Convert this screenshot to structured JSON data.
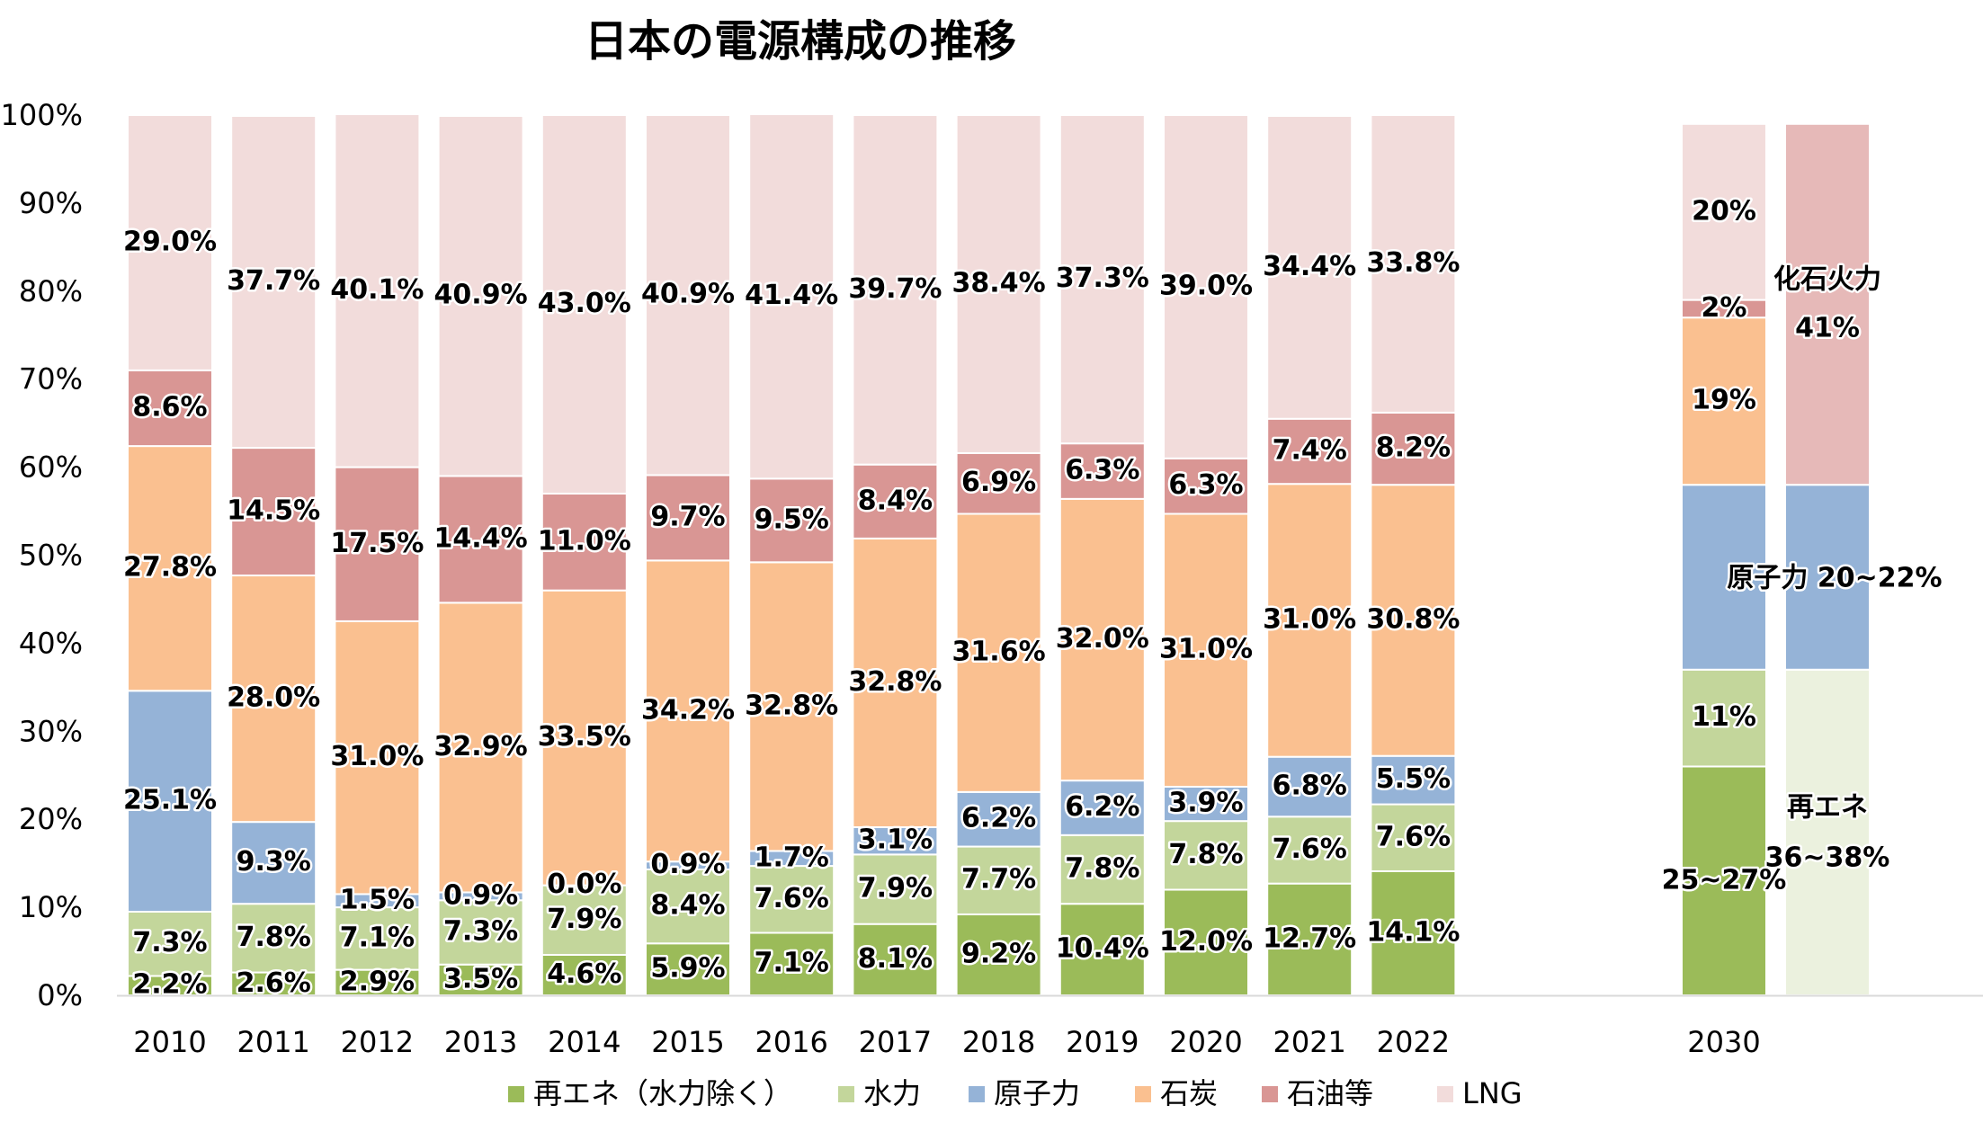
{
  "chart_data": {
    "type": "bar",
    "stacked": true,
    "title": "日本の電源構成の推移",
    "xlabel": "",
    "ylabel": "",
    "ylim": [
      0,
      100
    ],
    "yticks": [
      "0%",
      "10%",
      "20%",
      "30%",
      "40%",
      "50%",
      "60%",
      "70%",
      "80%",
      "90%",
      "100%"
    ],
    "grid": false,
    "legend_position": "bottom",
    "categories": [
      "2010",
      "2011",
      "2012",
      "2013",
      "2014",
      "2015",
      "2016",
      "2017",
      "2018",
      "2019",
      "2020",
      "2021",
      "2022"
    ],
    "series": [
      {
        "name": "再エネ（水力除く）",
        "color": "#9bbb59",
        "values": [
          2.2,
          2.6,
          2.9,
          3.5,
          4.6,
          5.9,
          7.1,
          8.1,
          9.2,
          10.4,
          12.0,
          12.7,
          14.1
        ]
      },
      {
        "name": "水力",
        "color": "#c3d69b",
        "values": [
          7.3,
          7.8,
          7.1,
          7.3,
          7.9,
          8.4,
          7.6,
          7.9,
          7.7,
          7.8,
          7.8,
          7.6,
          7.6
        ]
      },
      {
        "name": "原子力",
        "color": "#95b3d7",
        "values": [
          25.1,
          9.3,
          1.5,
          0.9,
          0.0,
          0.9,
          1.7,
          3.1,
          6.2,
          6.2,
          3.9,
          6.8,
          5.5
        ]
      },
      {
        "name": "石炭",
        "color": "#fac090",
        "values": [
          27.8,
          28.0,
          31.0,
          32.9,
          33.5,
          34.2,
          32.8,
          32.8,
          31.6,
          32.0,
          31.0,
          31.0,
          30.8
        ]
      },
      {
        "name": "石油等",
        "color": "#d99694",
        "values": [
          8.6,
          14.5,
          17.5,
          14.4,
          11.0,
          9.7,
          9.5,
          8.4,
          6.9,
          6.3,
          6.3,
          7.4,
          8.2
        ]
      },
      {
        "name": "LNG",
        "color": "#f2dcdb",
        "values": [
          29.0,
          37.7,
          40.1,
          40.9,
          43.0,
          40.9,
          41.4,
          39.7,
          38.4,
          37.3,
          39.0,
          34.4,
          33.8
        ]
      }
    ],
    "target_2030": {
      "category": "2030",
      "bar_detail": [
        {
          "series": "再エネ（水力除く）",
          "value": 26,
          "label": "25~27%"
        },
        {
          "series": "水力",
          "value": 11,
          "label": "11%"
        },
        {
          "series": "原子力",
          "value": 21,
          "label": ""
        },
        {
          "series": "石炭",
          "value": 19,
          "label": "19%"
        },
        {
          "series": "石油等",
          "value": 2,
          "label": "2%"
        },
        {
          "series": "LNG",
          "value": 20,
          "label": "20%"
        }
      ],
      "bar_summary": [
        {
          "name": "再エネ",
          "value": 37,
          "color": "#ebf1de",
          "label": "36~38%"
        },
        {
          "name": "原子力",
          "value": 21,
          "color": "#95b3d7",
          "label": ""
        },
        {
          "name": "化石火力",
          "value": 41,
          "color": "#e6b9b8",
          "label": "41%"
        }
      ],
      "nuclear_label": "原子力 20~22%"
    }
  }
}
